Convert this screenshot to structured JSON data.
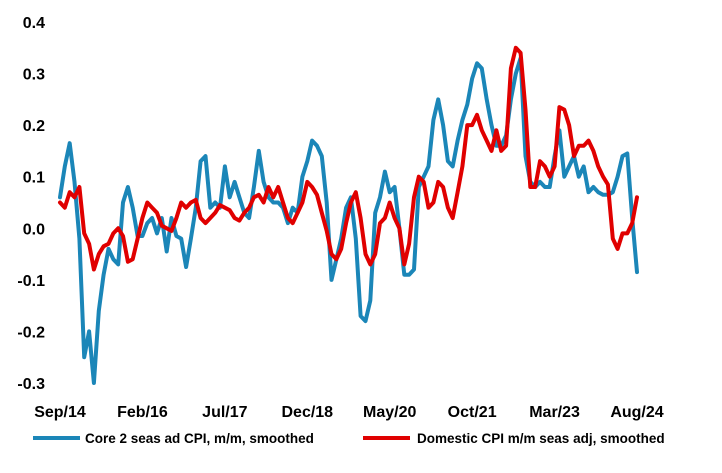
{
  "chart_data": {
    "type": "line",
    "title": "",
    "xlabel": "",
    "ylabel": "",
    "ylim": [
      -0.3,
      0.4
    ],
    "yticks": [
      0.4,
      0.3,
      0.2,
      0.1,
      0.0,
      -0.1,
      -0.2,
      -0.3
    ],
    "ytick_labels": [
      "0.4",
      "0.3",
      "0.2",
      "0.1",
      "0.0",
      "-0.1",
      "-0.2",
      "-0.3"
    ],
    "xlim": [
      "Sep/14",
      "May/25"
    ],
    "xtick_labels": [
      {
        "label": "Sep/14",
        "x": "2014-09"
      },
      {
        "label": "Feb/16",
        "x": "2016-02"
      },
      {
        "label": "Jul/17",
        "x": "2017-07"
      },
      {
        "label": "Dec/18",
        "x": "2018-12"
      },
      {
        "label": "May/20",
        "x": "2020-05"
      },
      {
        "label": "Oct/21",
        "x": "2021-10"
      },
      {
        "label": "Mar/23",
        "x": "2023-03"
      },
      {
        "label": "Aug/24",
        "x": "2024-08"
      }
    ],
    "grid": false,
    "legend_position": "bottom",
    "colors": {
      "core": "#1b86b8",
      "domestic": "#e00000"
    },
    "series": [
      {
        "name": "Core 2 seas ad CPI, m/m, smoothed",
        "color": "#1b86b8",
        "points": [
          [
            "2014-09",
            0.06
          ],
          [
            "2014-10",
            0.12
          ],
          [
            "2014-11",
            0.165
          ],
          [
            "2014-12",
            0.09
          ],
          [
            "2015-01",
            -0.02
          ],
          [
            "2015-02",
            -0.25
          ],
          [
            "2015-03",
            -0.2
          ],
          [
            "2015-04",
            -0.3
          ],
          [
            "2015-05",
            -0.16
          ],
          [
            "2015-06",
            -0.09
          ],
          [
            "2015-07",
            -0.04
          ],
          [
            "2015-08",
            -0.06
          ],
          [
            "2015-09",
            -0.07
          ],
          [
            "2015-10",
            0.05
          ],
          [
            "2015-11",
            0.08
          ],
          [
            "2015-12",
            0.04
          ],
          [
            "2016-01",
            -0.015
          ],
          [
            "2016-02",
            -0.015
          ],
          [
            "2016-03",
            0.01
          ],
          [
            "2016-04",
            0.02
          ],
          [
            "2016-05",
            -0.01
          ],
          [
            "2016-06",
            0.02
          ],
          [
            "2016-07",
            -0.045
          ],
          [
            "2016-08",
            0.02
          ],
          [
            "2016-09",
            -0.015
          ],
          [
            "2016-10",
            -0.02
          ],
          [
            "2016-11",
            -0.075
          ],
          [
            "2016-12",
            -0.02
          ],
          [
            "2017-01",
            0.04
          ],
          [
            "2017-02",
            0.13
          ],
          [
            "2017-03",
            0.14
          ],
          [
            "2017-04",
            0.04
          ],
          [
            "2017-05",
            0.05
          ],
          [
            "2017-06",
            0.04
          ],
          [
            "2017-07",
            0.12
          ],
          [
            "2017-08",
            0.06
          ],
          [
            "2017-09",
            0.09
          ],
          [
            "2017-10",
            0.06
          ],
          [
            "2017-11",
            0.03
          ],
          [
            "2017-12",
            0.02
          ],
          [
            "2018-01",
            0.08
          ],
          [
            "2018-02",
            0.15
          ],
          [
            "2018-03",
            0.09
          ],
          [
            "2018-04",
            0.06
          ],
          [
            "2018-05",
            0.05
          ],
          [
            "2018-06",
            0.05
          ],
          [
            "2018-07",
            0.04
          ],
          [
            "2018-08",
            0.01
          ],
          [
            "2018-09",
            0.04
          ],
          [
            "2018-10",
            0.03
          ],
          [
            "2018-11",
            0.1
          ],
          [
            "2018-12",
            0.13
          ],
          [
            "2019-01",
            0.17
          ],
          [
            "2019-02",
            0.16
          ],
          [
            "2019-03",
            0.14
          ],
          [
            "2019-04",
            0.05
          ],
          [
            "2019-05",
            -0.1
          ],
          [
            "2019-06",
            -0.06
          ],
          [
            "2019-07",
            -0.02
          ],
          [
            "2019-08",
            0.04
          ],
          [
            "2019-09",
            0.06
          ],
          [
            "2019-10",
            -0.02
          ],
          [
            "2019-11",
            -0.17
          ],
          [
            "2019-12",
            -0.18
          ],
          [
            "2020-01",
            -0.14
          ],
          [
            "2020-02",
            0.03
          ],
          [
            "2020-03",
            0.06
          ],
          [
            "2020-04",
            0.11
          ],
          [
            "2020-05",
            0.07
          ],
          [
            "2020-06",
            0.08
          ],
          [
            "2020-07",
            0.0
          ],
          [
            "2020-08",
            -0.09
          ],
          [
            "2020-09",
            -0.09
          ],
          [
            "2020-10",
            -0.08
          ],
          [
            "2020-11",
            0.08
          ],
          [
            "2020-12",
            0.1
          ],
          [
            "2021-01",
            0.12
          ],
          [
            "2021-02",
            0.21
          ],
          [
            "2021-03",
            0.25
          ],
          [
            "2021-04",
            0.2
          ],
          [
            "2021-05",
            0.13
          ],
          [
            "2021-06",
            0.12
          ],
          [
            "2021-07",
            0.17
          ],
          [
            "2021-08",
            0.21
          ],
          [
            "2021-09",
            0.24
          ],
          [
            "2021-10",
            0.29
          ],
          [
            "2021-11",
            0.32
          ],
          [
            "2021-12",
            0.31
          ],
          [
            "2022-01",
            0.25
          ],
          [
            "2022-02",
            0.2
          ],
          [
            "2022-03",
            0.16
          ],
          [
            "2022-04",
            0.16
          ],
          [
            "2022-05",
            0.18
          ],
          [
            "2022-06",
            0.25
          ],
          [
            "2022-07",
            0.3
          ],
          [
            "2022-08",
            0.33
          ],
          [
            "2022-09",
            0.14
          ],
          [
            "2022-10",
            0.09
          ],
          [
            "2022-11",
            0.08
          ],
          [
            "2022-12",
            0.09
          ],
          [
            "2023-01",
            0.08
          ],
          [
            "2023-02",
            0.08
          ],
          [
            "2023-03",
            0.14
          ],
          [
            "2023-04",
            0.19
          ],
          [
            "2023-05",
            0.1
          ],
          [
            "2023-06",
            0.12
          ],
          [
            "2023-07",
            0.14
          ],
          [
            "2023-08",
            0.1
          ],
          [
            "2023-09",
            0.12
          ],
          [
            "2023-10",
            0.07
          ],
          [
            "2023-11",
            0.08
          ],
          [
            "2023-12",
            0.07
          ],
          [
            "2024-01",
            0.065
          ],
          [
            "2024-02",
            0.065
          ],
          [
            "2024-03",
            0.07
          ],
          [
            "2024-04",
            0.1
          ],
          [
            "2024-05",
            0.14
          ],
          [
            "2024-06",
            0.145
          ],
          [
            "2024-07",
            0.02
          ],
          [
            "2024-08",
            -0.085
          ]
        ]
      },
      {
        "name": "Domestic CPI m/m seas adj, smoothed",
        "color": "#e00000",
        "points": [
          [
            "2014-09",
            0.05
          ],
          [
            "2014-10",
            0.04
          ],
          [
            "2014-11",
            0.07
          ],
          [
            "2014-12",
            0.06
          ],
          [
            "2015-01",
            0.08
          ],
          [
            "2015-02",
            -0.01
          ],
          [
            "2015-03",
            -0.03
          ],
          [
            "2015-04",
            -0.08
          ],
          [
            "2015-05",
            -0.05
          ],
          [
            "2015-06",
            -0.035
          ],
          [
            "2015-07",
            -0.03
          ],
          [
            "2015-08",
            -0.01
          ],
          [
            "2015-09",
            0.0
          ],
          [
            "2015-10",
            -0.015
          ],
          [
            "2015-11",
            -0.065
          ],
          [
            "2015-12",
            -0.06
          ],
          [
            "2016-01",
            -0.02
          ],
          [
            "2016-02",
            0.02
          ],
          [
            "2016-03",
            0.05
          ],
          [
            "2016-04",
            0.04
          ],
          [
            "2016-05",
            0.03
          ],
          [
            "2016-06",
            0.005
          ],
          [
            "2016-07",
            0.0
          ],
          [
            "2016-08",
            -0.005
          ],
          [
            "2016-09",
            0.02
          ],
          [
            "2016-10",
            0.05
          ],
          [
            "2016-11",
            0.04
          ],
          [
            "2016-12",
            0.05
          ],
          [
            "2017-01",
            0.055
          ],
          [
            "2017-02",
            0.02
          ],
          [
            "2017-03",
            0.01
          ],
          [
            "2017-04",
            0.02
          ],
          [
            "2017-05",
            0.03
          ],
          [
            "2017-06",
            0.045
          ],
          [
            "2017-07",
            0.04
          ],
          [
            "2017-08",
            0.035
          ],
          [
            "2017-09",
            0.02
          ],
          [
            "2017-10",
            0.015
          ],
          [
            "2017-11",
            0.03
          ],
          [
            "2017-12",
            0.04
          ],
          [
            "2018-01",
            0.06
          ],
          [
            "2018-02",
            0.065
          ],
          [
            "2018-03",
            0.05
          ],
          [
            "2018-04",
            0.08
          ],
          [
            "2018-05",
            0.06
          ],
          [
            "2018-06",
            0.08
          ],
          [
            "2018-07",
            0.05
          ],
          [
            "2018-08",
            0.02
          ],
          [
            "2018-09",
            0.01
          ],
          [
            "2018-10",
            0.03
          ],
          [
            "2018-11",
            0.05
          ],
          [
            "2018-12",
            0.09
          ],
          [
            "2019-01",
            0.08
          ],
          [
            "2019-02",
            0.065
          ],
          [
            "2019-03",
            0.03
          ],
          [
            "2019-04",
            -0.005
          ],
          [
            "2019-05",
            -0.05
          ],
          [
            "2019-06",
            -0.06
          ],
          [
            "2019-07",
            -0.04
          ],
          [
            "2019-08",
            0.01
          ],
          [
            "2019-09",
            0.05
          ],
          [
            "2019-10",
            0.07
          ],
          [
            "2019-11",
            0.02
          ],
          [
            "2019-12",
            -0.05
          ],
          [
            "2020-01",
            -0.07
          ],
          [
            "2020-02",
            -0.05
          ],
          [
            "2020-03",
            0.01
          ],
          [
            "2020-04",
            0.02
          ],
          [
            "2020-05",
            0.05
          ],
          [
            "2020-06",
            0.02
          ],
          [
            "2020-07",
            0.0
          ],
          [
            "2020-08",
            -0.07
          ],
          [
            "2020-09",
            -0.03
          ],
          [
            "2020-10",
            0.06
          ],
          [
            "2020-11",
            0.1
          ],
          [
            "2020-12",
            0.09
          ],
          [
            "2021-01",
            0.04
          ],
          [
            "2021-02",
            0.05
          ],
          [
            "2021-03",
            0.09
          ],
          [
            "2021-04",
            0.08
          ],
          [
            "2021-05",
            0.04
          ],
          [
            "2021-06",
            0.02
          ],
          [
            "2021-07",
            0.07
          ],
          [
            "2021-08",
            0.12
          ],
          [
            "2021-09",
            0.2
          ],
          [
            "2021-10",
            0.2
          ],
          [
            "2021-11",
            0.22
          ],
          [
            "2021-12",
            0.19
          ],
          [
            "2022-01",
            0.17
          ],
          [
            "2022-02",
            0.15
          ],
          [
            "2022-03",
            0.19
          ],
          [
            "2022-04",
            0.15
          ],
          [
            "2022-05",
            0.16
          ],
          [
            "2022-06",
            0.31
          ],
          [
            "2022-07",
            0.35
          ],
          [
            "2022-08",
            0.34
          ],
          [
            "2022-09",
            0.23
          ],
          [
            "2022-10",
            0.08
          ],
          [
            "2022-11",
            0.08
          ],
          [
            "2022-12",
            0.13
          ],
          [
            "2023-01",
            0.12
          ],
          [
            "2023-02",
            0.1
          ],
          [
            "2023-03",
            0.12
          ],
          [
            "2023-04",
            0.235
          ],
          [
            "2023-05",
            0.23
          ],
          [
            "2023-06",
            0.2
          ],
          [
            "2023-07",
            0.14
          ],
          [
            "2023-08",
            0.16
          ],
          [
            "2023-09",
            0.16
          ],
          [
            "2023-10",
            0.17
          ],
          [
            "2023-11",
            0.15
          ],
          [
            "2023-12",
            0.12
          ],
          [
            "2024-01",
            0.1
          ],
          [
            "2024-02",
            0.085
          ],
          [
            "2024-03",
            -0.02
          ],
          [
            "2024-04",
            -0.04
          ],
          [
            "2024-05",
            -0.01
          ],
          [
            "2024-06",
            -0.01
          ],
          [
            "2024-07",
            0.01
          ],
          [
            "2024-08",
            0.06
          ]
        ]
      }
    ]
  }
}
